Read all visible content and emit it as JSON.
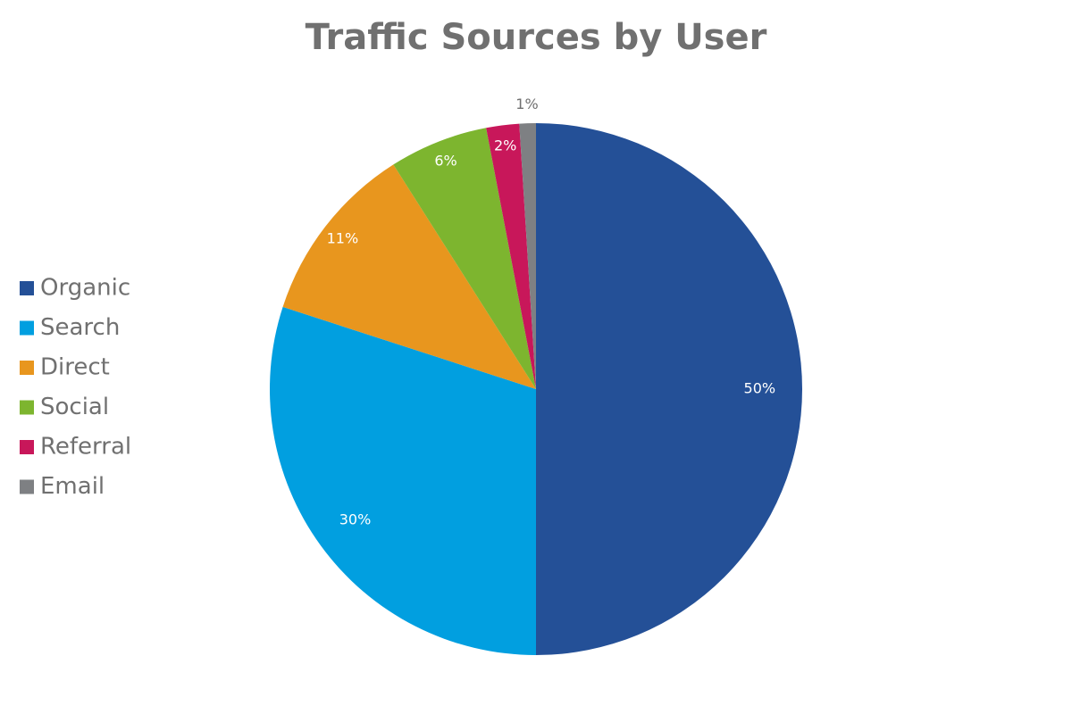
{
  "chart_data": {
    "type": "pie",
    "title": "Traffic Sources by User",
    "categories": [
      "Organic",
      "Search",
      "Direct",
      "Social",
      "Referral",
      "Email"
    ],
    "values": [
      50,
      30,
      11,
      6,
      2,
      1
    ],
    "value_labels": [
      "50%",
      "30%",
      "11%",
      "6%",
      "2%",
      "1%"
    ],
    "colors": [
      "#245097",
      "#019fe0",
      "#e8961e",
      "#7db52f",
      "#c8175a",
      "#7e8083"
    ],
    "legend": "left"
  }
}
